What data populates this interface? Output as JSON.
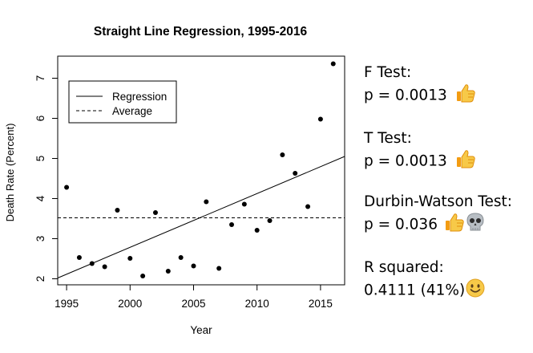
{
  "chart_data": {
    "type": "scatter",
    "title": "Straight Line Regression, 1995-2016",
    "xlabel": "Year",
    "ylabel": "Death Rate (Percent)",
    "xlim": [
      1994.3,
      2016.9
    ],
    "ylim": [
      1.85,
      7.55
    ],
    "x_ticks": [
      1995,
      2000,
      2005,
      2010,
      2015
    ],
    "y_ticks": [
      2,
      3,
      4,
      5,
      6,
      7
    ],
    "grid": false,
    "legend_position": "top-left",
    "legend": [
      {
        "label": "Regression",
        "style": "solid"
      },
      {
        "label": "Average",
        "style": "dashed"
      }
    ],
    "series": [
      {
        "x": [
          1995,
          1996,
          1997,
          1998,
          1999,
          2000,
          2001,
          2002,
          2003,
          2004,
          2005,
          2006,
          2007,
          2008,
          2009,
          2010,
          2011,
          2012,
          2013,
          2014,
          2015,
          2016
        ],
        "values": [
          4.28,
          2.53,
          2.38,
          2.3,
          3.71,
          2.51,
          2.07,
          3.65,
          2.19,
          2.53,
          2.32,
          3.92,
          2.26,
          3.35,
          3.86,
          3.21,
          3.45,
          5.09,
          4.63,
          3.8,
          5.98,
          7.36
        ]
      }
    ],
    "regression_line": {
      "x": [
        1994.3,
        2016.9
      ],
      "y": [
        2.02,
        5.05
      ]
    },
    "average_line": {
      "y": 3.52
    }
  },
  "stats": [
    {
      "label": "F Test:",
      "value": "p = 0.0013",
      "icons": [
        "thumbs-up-icon"
      ]
    },
    {
      "label": "T Test:",
      "value": "p = 0.0013",
      "icons": [
        "thumbs-up-icon"
      ]
    },
    {
      "label": "Durbin-Watson Test:",
      "value": "p = 0.036",
      "icons": [
        "thumbs-up-icon",
        "skull-icon"
      ]
    },
    {
      "label": "R squared:",
      "value": "0.4111 (41%)",
      "icons": [
        "smiling-face-icon"
      ]
    }
  ],
  "colors": {
    "emoji_yellow": "#f7c948",
    "emoji_orange": "#f39c12",
    "skull_gray": "#b8bec4"
  }
}
